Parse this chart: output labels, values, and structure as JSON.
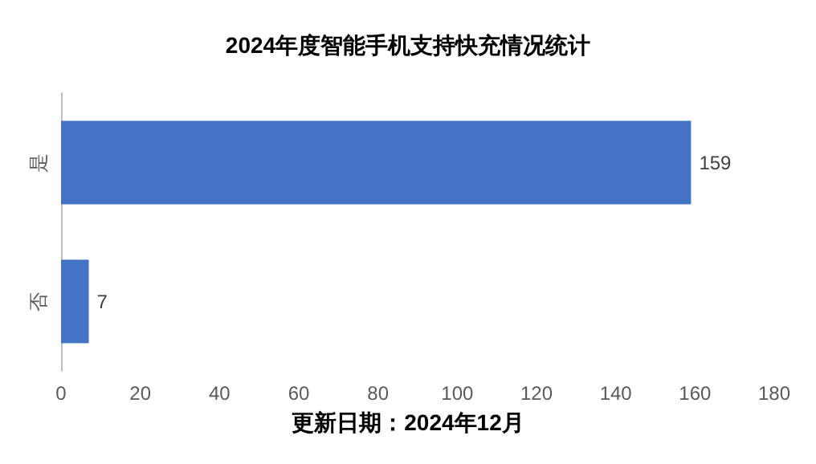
{
  "chart_data": {
    "type": "bar",
    "title": "2024年度智能手机支持快充情况统计",
    "orientation": "horizontal",
    "categories": [
      "是",
      "否"
    ],
    "values": [
      159,
      7
    ],
    "color": "#4472c4",
    "data_labels": true,
    "xlim": [
      0,
      180
    ],
    "xticks": [
      0,
      20,
      40,
      60,
      80,
      100,
      120,
      140,
      160,
      180
    ],
    "grid": false,
    "annotations": [
      "更新日期：2024年12月"
    ]
  }
}
